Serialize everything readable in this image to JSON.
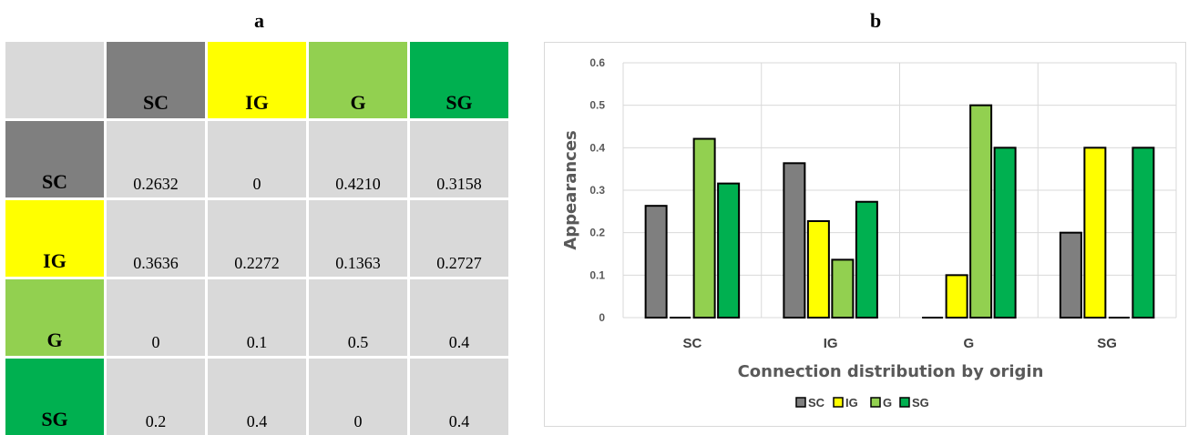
{
  "panels": {
    "a": "a",
    "b": "b"
  },
  "colors": {
    "SC": "#7f7f7f",
    "IG": "#ffff00",
    "G": "#92d050",
    "SG": "#00b050",
    "cell": "#d9d9d9"
  },
  "table": {
    "columns": [
      "SC",
      "IG",
      "G",
      "SG"
    ],
    "rows": [
      {
        "label": "SC",
        "values": [
          "0.2632",
          "0",
          "0.4210",
          "0.3158"
        ]
      },
      {
        "label": "IG",
        "values": [
          "0.3636",
          "0.2272",
          "0.1363",
          "0.2727"
        ]
      },
      {
        "label": "G",
        "values": [
          "0",
          "0.1",
          "0.5",
          "0.4"
        ]
      },
      {
        "label": "SG",
        "values": [
          "0.2",
          "0.4",
          "0",
          "0.4"
        ]
      }
    ]
  },
  "chart_data": {
    "type": "bar",
    "title": "",
    "xlabel": "Connection distribution by origin",
    "ylabel": "Appearances",
    "ylim": [
      0,
      0.6
    ],
    "yticks": [
      "0",
      "0.1",
      "0.2",
      "0.3",
      "0.4",
      "0.5",
      "0.6"
    ],
    "grid": true,
    "legend_position": "bottom",
    "categories": [
      "SC",
      "IG",
      "G",
      "SG"
    ],
    "series": [
      {
        "name": "SC",
        "color": "#7f7f7f",
        "values": [
          0.2632,
          0.3636,
          0,
          0.2
        ]
      },
      {
        "name": "IG",
        "color": "#ffff00",
        "values": [
          0,
          0.2272,
          0.1,
          0.4
        ]
      },
      {
        "name": "G",
        "color": "#92d050",
        "values": [
          0.421,
          0.1363,
          0.5,
          0
        ]
      },
      {
        "name": "SG",
        "color": "#00b050",
        "values": [
          0.3158,
          0.2727,
          0.4,
          0.4
        ]
      }
    ]
  }
}
